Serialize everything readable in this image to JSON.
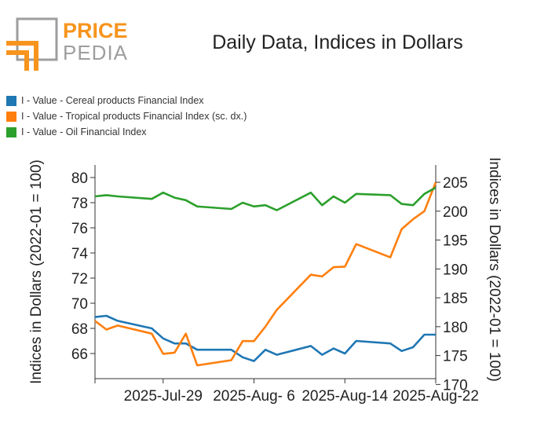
{
  "logo": {
    "top_word": "PRICE",
    "bottom_word": "PEDIA",
    "accent_color": "#f7941d",
    "gray_color": "#9e9e9e"
  },
  "chart_data": {
    "type": "line",
    "title": "Daily Data, Indices in Dollars",
    "ylabel_left": "Indices in Dollars (2022-01 = 100)",
    "ylabel_right": "Indices in Dollars (2022-01 = 100)",
    "x_tick_labels": [
      "2025-Jul-29",
      "2025-Aug- 6",
      "2025-Aug-14",
      "2025-Aug-22"
    ],
    "x_tick_dates": [
      "2025-07-29",
      "2025-08-06",
      "2025-08-14",
      "2025-08-22"
    ],
    "xlim": [
      "2025-07-23",
      "2025-08-22"
    ],
    "ylim_left": [
      64,
      81
    ],
    "ylim_right": [
      171,
      208
    ],
    "y_ticks_left": [
      "66",
      "68",
      "70",
      "72",
      "74",
      "76",
      "78",
      "80"
    ],
    "y_ticks_right": [
      "170",
      "175",
      "180",
      "185",
      "190",
      "195",
      "200",
      "205"
    ],
    "grid": false,
    "legend_position": "top-left",
    "x": [
      "2025-07-23",
      "2025-07-24",
      "2025-07-25",
      "2025-07-28",
      "2025-07-29",
      "2025-07-30",
      "2025-07-31",
      "2025-08-01",
      "2025-08-04",
      "2025-08-05",
      "2025-08-06",
      "2025-08-07",
      "2025-08-08",
      "2025-08-11",
      "2025-08-12",
      "2025-08-13",
      "2025-08-14",
      "2025-08-15",
      "2025-08-18",
      "2025-08-19",
      "2025-08-20",
      "2025-08-21",
      "2025-08-22"
    ],
    "series": [
      {
        "name": "I - Value - Cereal products Financial Index",
        "axis": "left",
        "color": "#1f77b4",
        "values": [
          68.9,
          69.0,
          68.6,
          68.0,
          67.2,
          66.8,
          66.8,
          66.3,
          66.3,
          65.7,
          65.4,
          66.3,
          65.9,
          66.6,
          65.9,
          66.4,
          66.0,
          67.0,
          66.8,
          66.2,
          66.5,
          67.5,
          67.5
        ]
      },
      {
        "name": "I - Value - Tropical products Financial Index (sc. dx.)",
        "axis": "right",
        "color": "#ff7f0e",
        "values": [
          181.0,
          179.5,
          180.2,
          178.8,
          175.3,
          175.5,
          178.8,
          173.3,
          174.2,
          177.5,
          177.5,
          180.0,
          182.9,
          189.0,
          188.7,
          190.3,
          190.4,
          194.3,
          192.0,
          196.9,
          198.6,
          200.0,
          205.0
        ]
      },
      {
        "name": "I - Value - Oil Financial Index",
        "axis": "left",
        "color": "#2ca02c",
        "values": [
          78.5,
          78.6,
          78.5,
          78.3,
          78.8,
          78.4,
          78.2,
          77.7,
          77.5,
          78.0,
          77.7,
          77.8,
          77.4,
          78.8,
          77.8,
          78.5,
          78.0,
          78.7,
          78.6,
          77.9,
          77.8,
          78.7,
          79.2
        ]
      }
    ]
  }
}
